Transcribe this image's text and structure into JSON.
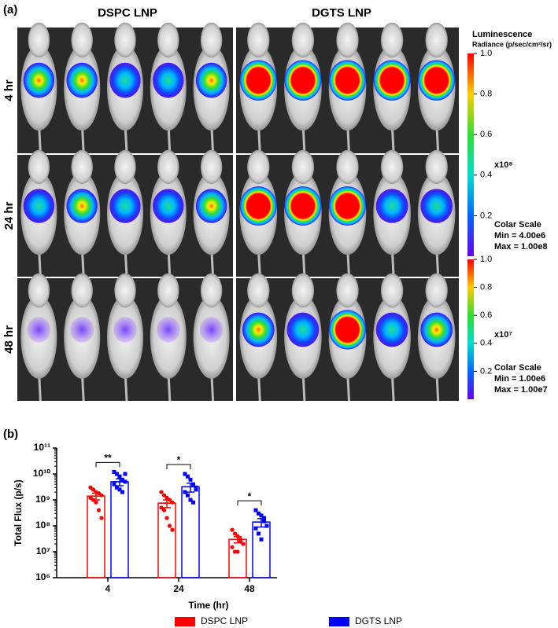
{
  "figure": {
    "panel_a_label": "(a)",
    "groups": [
      "DSPC LNP",
      "DGTS LNP"
    ],
    "rows": [
      "4 hr",
      "24 hr",
      "48 hr"
    ],
    "colorbar_title": "Luminescence",
    "colorbar_unit": "Radiance (p/sec/cm²/sr)",
    "colorbars": [
      {
        "ticks": [
          {
            "value": 1,
            "label": "1.0"
          },
          0.8,
          0.6,
          0.4,
          0.2
        ],
        "multiplier": "x10⁸",
        "scale_title": "Colar Scale",
        "min": "Min = 4.00e6",
        "max": "Max = 1.00e8"
      },
      {
        "ticks": [
          {
            "value": 1,
            "label": "1.0"
          },
          0.8,
          0.6,
          0.4,
          0.2
        ],
        "multiplier": "x10⁷",
        "scale_title": "Colar Scale",
        "min": "Min = 1.00e6",
        "max": "Max = 1.00e7"
      }
    ],
    "panel_b_label": "(b)"
  },
  "chart_data": {
    "type": "bar",
    "xlabel": "Time (hr)",
    "ylabel": "Total Flux (p/s)",
    "categories": [
      "4",
      "24",
      "48"
    ],
    "log_scale": true,
    "ylim": [
      1000000,
      100000000000
    ],
    "yticks": [
      {
        "value": 1000000,
        "label": "10⁶"
      },
      {
        "value": 10000000,
        "label": "10⁷"
      },
      {
        "value": 100000000,
        "label": "10⁸"
      },
      {
        "value": 1000000000,
        "label": "10⁹"
      },
      {
        "value": 10000000000,
        "label": "10¹⁰"
      },
      {
        "value": 100000000000,
        "label": "10¹¹"
      }
    ],
    "series": [
      {
        "name": "DSPC LNP",
        "color": "#ff0000",
        "values": [
          1400000000,
          750000000,
          30000000
        ],
        "errors": [
          400000000,
          250000000,
          8000000
        ],
        "points": [
          [
            3000000000,
            2500000000,
            2000000000,
            1800000000,
            1500000000,
            1200000000,
            1000000000,
            800000000,
            400000000,
            200000000
          ],
          [
            2000000000,
            1500000000,
            1200000000,
            1000000000,
            800000000,
            500000000,
            400000000,
            200000000,
            100000000,
            70000000
          ],
          [
            70000000,
            50000000,
            40000000,
            30000000,
            20000000,
            15000000,
            10000000,
            10000000,
            25000000
          ]
        ]
      },
      {
        "name": "DGTS LNP",
        "color": "#0000ff",
        "values": [
          5000000000,
          3200000000,
          140000000
        ],
        "errors": [
          1500000000,
          1200000000,
          50000000
        ],
        "points": [
          [
            12000000000,
            10000000000,
            8000000000,
            6000000000,
            5000000000,
            4000000000,
            3000000000,
            2500000000,
            2000000000,
            10000000000
          ],
          [
            10000000000,
            8000000000,
            6000000000,
            4000000000,
            3000000000,
            2000000000,
            1500000000,
            1000000000,
            800000000,
            2500000000
          ],
          [
            400000000,
            300000000,
            250000000,
            150000000,
            100000000,
            80000000,
            50000000,
            30000000,
            200000000
          ]
        ]
      }
    ],
    "significance": [
      "**",
      "*",
      "*"
    ]
  }
}
